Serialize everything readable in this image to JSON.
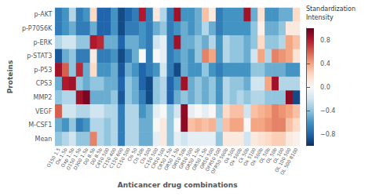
{
  "chart_data": {
    "type": "heatmap",
    "categories": [
      "O150 1.5",
      "Ox 1.5b",
      "Oxp 1.5b",
      "O150 1.5b",
      "D300 1.5b",
      "D0 8.5b",
      "D0 8.5b",
      "C450 500",
      "C150 400",
      "C150 600",
      "C150 500",
      "Cls 50",
      "Cls 50b",
      "Cls 500",
      "C150 500",
      "CR50 500",
      "CR50 1.5b",
      "OR50 1.5b",
      "OR50 50b",
      "GR50 500",
      "GR50 1.5b",
      "OR50 1.5b",
      "OR50 500",
      "OFR50 500",
      "OFR50 500b",
      "Ok 500",
      "Ok 500b",
      "Ck 50b",
      "Ok 5100",
      "Ok 500b",
      "OL 50b",
      "OL 50b",
      "OL 100",
      "OL 100 500",
      "OL 500 8100"
    ],
    "y_categories": [
      "p-AKT",
      "p-P70S6K",
      "p-ERK",
      "p-STAT3",
      "p-P53",
      "CPS3",
      "MMP2",
      "VEGF",
      "M-CSF1",
      "Mean"
    ],
    "values": [
      [
        -0.7,
        -0.6,
        -0.3,
        -0.7,
        -0.6,
        0.2,
        -0.8,
        -0.8,
        -0.6,
        -0.9,
        -0.8,
        -0.7,
        0.8,
        -0.7,
        0.1,
        -0.3,
        -0.7,
        0.85,
        -0.6,
        -0.6,
        -0.5,
        0.3,
        0.1,
        -0.7,
        -0.6,
        -0.6,
        -0.6,
        0.85,
        -0.5,
        0.15,
        -0.6,
        -0.6,
        -0.5,
        -0.5,
        0.2
      ],
      [
        -0.7,
        -0.6,
        -0.5,
        -0.7,
        -0.7,
        -0.5,
        -0.8,
        -0.8,
        -0.6,
        -0.9,
        -0.7,
        -0.7,
        -0.6,
        -0.7,
        -0.5,
        -0.4,
        -0.7,
        -0.6,
        -0.5,
        -0.6,
        -0.5,
        -0.3,
        -0.5,
        -0.7,
        -0.6,
        -0.6,
        -0.6,
        -0.6,
        -0.4,
        0.05,
        -0.5,
        -0.5,
        -0.4,
        0.1,
        0.1
      ],
      [
        -0.3,
        -0.2,
        -0.2,
        -0.4,
        -0.4,
        0.8,
        0.75,
        -0.5,
        -0.5,
        -0.8,
        -0.5,
        -0.5,
        -0.6,
        -0.7,
        -0.2,
        -0.1,
        -0.7,
        0.85,
        -0.5,
        -0.5,
        -0.4,
        -0.5,
        -0.3,
        -0.6,
        -0.3,
        -0.4,
        -0.4,
        -0.5,
        -0.4,
        0.2,
        -0.4,
        -0.4,
        -0.3,
        0.4,
        0.3
      ],
      [
        -0.85,
        -0.5,
        -0.4,
        -0.7,
        -0.7,
        0.1,
        -0.7,
        -0.7,
        -0.6,
        -0.9,
        -0.7,
        -0.5,
        0.0,
        -0.7,
        0.0,
        -0.1,
        -0.7,
        -0.6,
        -0.5,
        -0.6,
        -0.4,
        0.5,
        0.4,
        -0.6,
        -0.3,
        -0.4,
        -0.4,
        -0.5,
        -0.2,
        0.4,
        -0.3,
        0.5,
        0.45,
        0.4,
        0.15
      ],
      [
        0.85,
        0.6,
        -0.4,
        0.75,
        -0.5,
        0.2,
        -0.6,
        -0.6,
        -0.5,
        -0.85,
        -0.5,
        -0.6,
        -0.8,
        -0.7,
        -0.6,
        -0.2,
        -0.7,
        -0.9,
        -0.5,
        -0.6,
        -0.6,
        -0.4,
        -0.6,
        -0.7,
        -0.6,
        -0.6,
        -0.6,
        -0.6,
        -0.4,
        -0.4,
        -0.5,
        -0.5,
        -0.5,
        -0.6,
        -0.6
      ],
      [
        -0.5,
        0.8,
        0.85,
        -0.4,
        -0.5,
        -0.4,
        -0.4,
        -0.5,
        -0.5,
        -0.8,
        -0.4,
        -0.5,
        -0.8,
        -0.9,
        -0.4,
        -0.3,
        -0.8,
        -0.6,
        0.85,
        -0.5,
        -0.4,
        -0.5,
        -0.4,
        -0.6,
        -0.3,
        -0.4,
        -0.4,
        -0.5,
        -0.2,
        -0.2,
        0.4,
        0.85,
        -0.3,
        -0.3,
        -0.3
      ],
      [
        -0.4,
        -0.3,
        -0.3,
        0.85,
        0.95,
        -0.5,
        -0.5,
        -0.5,
        -0.4,
        -0.85,
        -0.4,
        -0.5,
        -0.7,
        -0.9,
        -0.4,
        -0.3,
        -0.8,
        -0.5,
        -0.4,
        -0.5,
        -0.4,
        -0.5,
        -0.4,
        -0.6,
        -0.3,
        -0.4,
        -0.3,
        -0.4,
        -0.3,
        -0.3,
        -0.4,
        -0.4,
        -0.4,
        0.9,
        -0.9
      ],
      [
        0.6,
        -0.2,
        -0.2,
        -0.3,
        -0.3,
        -0.2,
        -0.2,
        -0.3,
        -0.3,
        -0.7,
        -0.3,
        -0.3,
        -0.6,
        -0.5,
        -0.1,
        0.0,
        -0.4,
        -0.2,
        0.9,
        -0.1,
        0.0,
        -0.1,
        0.0,
        -0.4,
        0.2,
        0.3,
        0.3,
        -0.2,
        0.3,
        0.35,
        0.4,
        0.5,
        0.45,
        0.4,
        0.3
      ],
      [
        -0.5,
        -0.6,
        -0.4,
        -0.7,
        -0.6,
        -0.3,
        -0.3,
        -0.4,
        -0.3,
        -0.7,
        -0.3,
        -0.3,
        -0.5,
        -0.5,
        0.0,
        0.1,
        -0.4,
        0.0,
        0.9,
        0.3,
        0.35,
        0.3,
        0.35,
        -0.3,
        0.3,
        0.4,
        0.4,
        0.0,
        0.4,
        0.4,
        0.45,
        0.5,
        0.5,
        0.3,
        0.2
      ],
      [
        -0.4,
        -0.3,
        -0.2,
        -0.4,
        -0.4,
        0.5,
        -0.3,
        -0.4,
        -0.3,
        -0.7,
        -0.3,
        -0.3,
        -0.5,
        -0.5,
        -0.1,
        0.1,
        -0.4,
        -0.1,
        -0.2,
        -0.1,
        -0.1,
        -0.1,
        -0.1,
        -0.4,
        0.1,
        0.1,
        0.1,
        -0.2,
        0.1,
        0.15,
        0.2,
        0.25,
        0.25,
        0.1,
        0.05
      ]
    ],
    "xlabel": "Anticancer drug combinations",
    "ylabel": "Proteins",
    "colorbar_title": "Standardization\nIntensity",
    "colorbar_range": [
      -1.0,
      1.0
    ],
    "colorbar_ticks": [
      0.8,
      0.4,
      {
        "value": 0.0,
        "label": "0.0"
      },
      {
        "value": -0.4,
        "label": "−0.4"
      },
      {
        "value": -0.8,
        "label": "−0.8"
      }
    ]
  }
}
